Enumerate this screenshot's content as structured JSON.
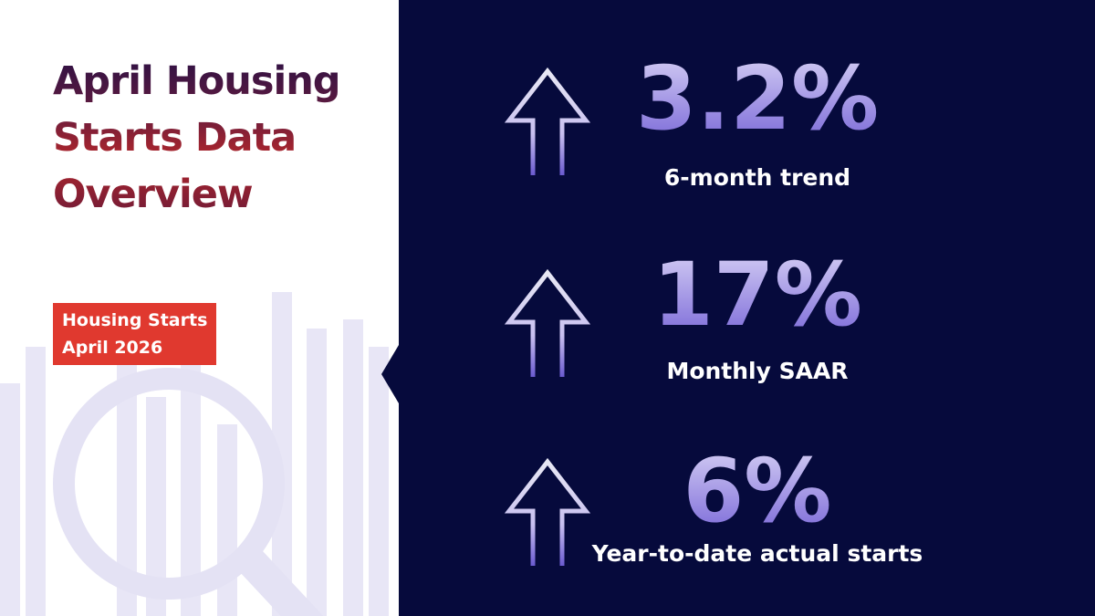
{
  "header": {
    "title": "April Housing Starts Data Overview",
    "tag": [
      "Housing Starts",
      "April 2026"
    ]
  },
  "stats": [
    {
      "value": "3.2%",
      "label": "6-month trend"
    },
    {
      "value": "17%",
      "label": "Monthly SAAR"
    },
    {
      "value": "6%",
      "label": "Year-to-date actual starts"
    }
  ]
}
